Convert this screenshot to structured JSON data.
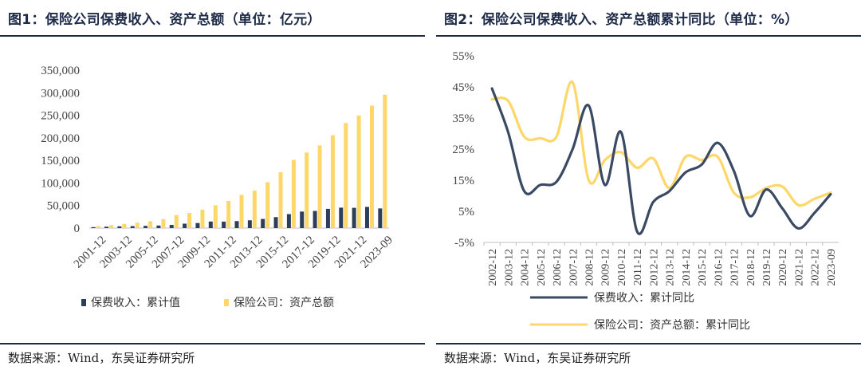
{
  "colors": {
    "navy": "#2d3e5a",
    "gold": "#fdd76a",
    "rule": "#1d2b49"
  },
  "left": {
    "title": "图1：保险公司保费收入、资产总额（单位：亿元）",
    "source": "数据来源：Wind，东吴证券研究所"
  },
  "right": {
    "title": "图2：保险公司保费收入、资产总额累计同比（单位：%）",
    "source": "数据来源：Wind，东吴证券研究所"
  },
  "chart_data": [
    {
      "type": "bar",
      "title": "图1：保险公司保费收入、资产总额（单位：亿元）",
      "categories": [
        "2001-12",
        "2002-12",
        "2003-12",
        "2004-12",
        "2005-12",
        "2006-12",
        "2007-12",
        "2008-12",
        "2009-12",
        "2010-12",
        "2011-12",
        "2012-12",
        "2013-12",
        "2014-12",
        "2015-12",
        "2016-12",
        "2017-12",
        "2018-12",
        "2019-12",
        "2020-12",
        "2021-12",
        "2022-12",
        "2023-09"
      ],
      "tick_labels": [
        "2001-12",
        "2003-12",
        "2005-12",
        "2007-12",
        "2009-12",
        "2011-12",
        "2013-12",
        "2015-12",
        "2017-12",
        "2019-12",
        "2021-12",
        "2023-09"
      ],
      "series": [
        {
          "name": "保费收入：累计值",
          "color": "#2d3e5a",
          "values": [
            2100,
            3050,
            3880,
            4320,
            4930,
            5640,
            7040,
            9780,
            11140,
            14530,
            14340,
            15490,
            17220,
            20230,
            24280,
            30960,
            36580,
            38020,
            42650,
            45260,
            44900,
            46960,
            43580
          ]
        },
        {
          "name": "保险公司：资产总额",
          "color": "#fdd76a",
          "values": [
            4590,
            6490,
            9120,
            11850,
            15290,
            19730,
            28910,
            33420,
            40640,
            50480,
            60140,
            73550,
            82890,
            101600,
            123600,
            151170,
            167490,
            183300,
            205640,
            233000,
            249580,
            271470,
            295560
          ]
        }
      ],
      "yticks": [
        "0",
        "50,000",
        "100,000",
        "150,000",
        "200,000",
        "250,000",
        "300,000",
        "350,000"
      ],
      "ylim": [
        0,
        350000
      ],
      "legend": [
        "保费收入：累计值",
        "保险公司：资产总额"
      ]
    },
    {
      "type": "line",
      "title": "图2：保险公司保费收入、资产总额累计同比（单位：%）",
      "categories": [
        "2002-12",
        "2003-12",
        "2004-12",
        "2005-12",
        "2006-12",
        "2007-12",
        "2008-12",
        "2009-12",
        "2010-12",
        "2011-12",
        "2012-12",
        "2013-12",
        "2014-12",
        "2015-12",
        "2016-12",
        "2017-12",
        "2018-12",
        "2019-12",
        "2020-12",
        "2021-12",
        "2022-12",
        "2023-09"
      ],
      "series": [
        {
          "name": "保费收入：累计同比",
          "color": "#3a4a63",
          "values": [
            44.5,
            30.5,
            11.5,
            13.5,
            14.5,
            25.0,
            39.0,
            13.5,
            30.5,
            -1.5,
            8.0,
            11.5,
            17.5,
            20.0,
            27.0,
            18.0,
            3.5,
            12.0,
            6.0,
            -0.5,
            4.5,
            10.5
          ]
        },
        {
          "name": "保险公司：资产总额：累计同比",
          "color": "#fdd76a",
          "values": [
            41.0,
            40.5,
            29.0,
            28.5,
            29.0,
            46.5,
            15.0,
            21.5,
            24.0,
            19.0,
            22.0,
            12.5,
            22.5,
            21.5,
            22.5,
            11.0,
            9.5,
            12.5,
            13.0,
            7.0,
            9.0,
            11.0
          ]
        }
      ],
      "yticks": [
        "-5%",
        "5%",
        "15%",
        "25%",
        "35%",
        "45%",
        "55%"
      ],
      "ylim": [
        -5,
        55
      ],
      "legend": [
        "保费收入：累计同比",
        "保险公司：资产总额：累计同比"
      ]
    }
  ]
}
